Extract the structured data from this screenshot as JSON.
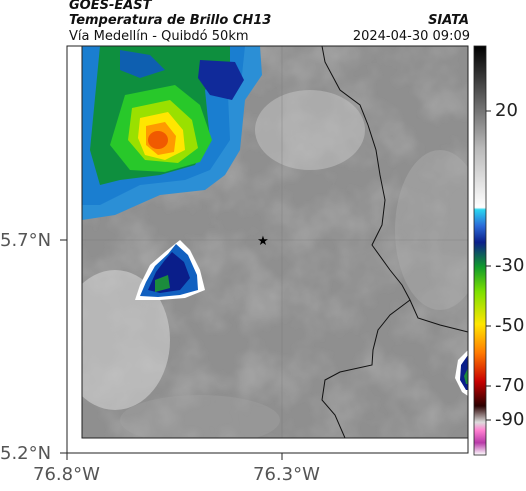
{
  "header": {
    "satellite": "GOES-EAST",
    "product": "Temperatura de Brillo CH13",
    "route": "Vía Medellín - Quibdó 50km",
    "org": "SIATA",
    "timestamp": "2024-04-30 09:09"
  },
  "axes": {
    "x_ticks": [
      "76.8°W",
      "76.3°W"
    ],
    "y_ticks": [
      "5.7°N",
      "5.2°N"
    ]
  },
  "colorbar": {
    "ticks": [
      "20",
      "-30",
      "-50",
      "-70",
      "-90"
    ]
  },
  "map": {
    "marker_icon": "star-icon"
  }
}
